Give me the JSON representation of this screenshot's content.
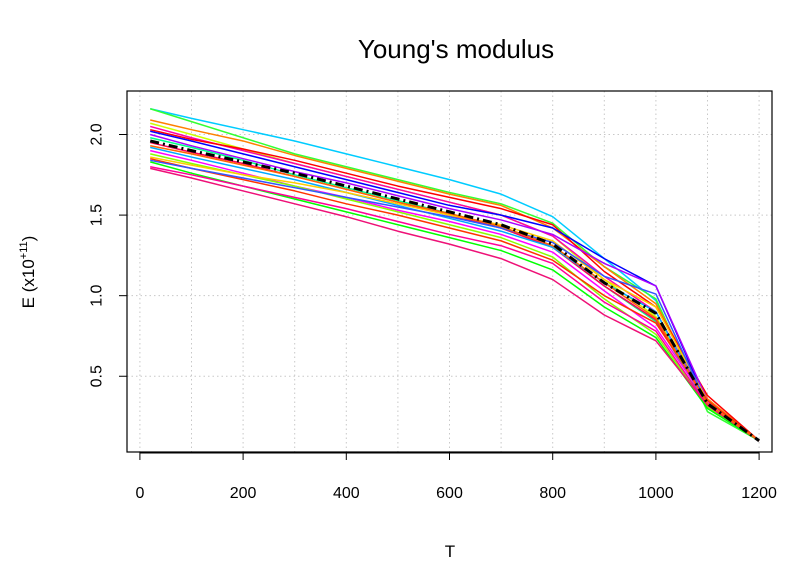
{
  "chart_data": {
    "type": "line",
    "title": "Young's modulus",
    "xlabel": "T",
    "ylabel_main": "E (x10",
    "ylabel_sup": "+11",
    "ylabel_close": ")",
    "xlim": [
      -25,
      1225
    ],
    "ylim": [
      0.03,
      2.27
    ],
    "x_ticks": [
      0,
      200,
      400,
      600,
      800,
      1000,
      1200
    ],
    "x_tick_labels": [
      "0",
      "200",
      "400",
      "600",
      "800",
      "1000",
      "1200"
    ],
    "y_ticks": [
      0.5,
      1.0,
      1.5,
      2.0
    ],
    "y_tick_labels": [
      "0.5",
      "1.0",
      "1.5",
      "2.0"
    ],
    "grid": true,
    "grid_x": [
      0,
      100,
      200,
      300,
      400,
      500,
      600,
      700,
      800,
      900,
      1000,
      1100,
      1200
    ],
    "x": [
      20,
      100,
      200,
      300,
      400,
      500,
      600,
      700,
      800,
      900,
      1000,
      1100,
      1200
    ],
    "series": [
      {
        "color": "#00ccff",
        "values": [
          2.16,
          2.1,
          2.03,
          1.96,
          1.88,
          1.8,
          1.72,
          1.63,
          1.49,
          1.23,
          0.97,
          0.31,
          0.1
        ]
      },
      {
        "color": "#33ff33",
        "values": [
          2.16,
          2.08,
          1.98,
          1.88,
          1.8,
          1.72,
          1.64,
          1.57,
          1.45,
          1.18,
          0.98,
          0.28,
          0.1
        ]
      },
      {
        "color": "#ff8000",
        "values": [
          2.09,
          2.03,
          1.96,
          1.87,
          1.79,
          1.71,
          1.63,
          1.56,
          1.42,
          1.18,
          0.95,
          0.36,
          0.1
        ]
      },
      {
        "color": "#ccff00",
        "values": [
          2.07,
          2.0,
          1.91,
          1.82,
          1.74,
          1.66,
          1.58,
          1.5,
          1.37,
          1.1,
          0.87,
          0.33,
          0.1
        ]
      },
      {
        "color": "#ff00aa",
        "values": [
          2.05,
          1.98,
          1.9,
          1.82,
          1.74,
          1.66,
          1.58,
          1.5,
          1.37,
          1.12,
          0.9,
          0.33,
          0.1
        ]
      },
      {
        "color": "#ff0000",
        "values": [
          2.03,
          1.97,
          1.91,
          1.84,
          1.76,
          1.68,
          1.61,
          1.54,
          1.44,
          1.15,
          0.93,
          0.38,
          0.1
        ]
      },
      {
        "color": "#0000ff",
        "values": [
          2.02,
          1.96,
          1.88,
          1.8,
          1.72,
          1.64,
          1.56,
          1.5,
          1.42,
          1.23,
          1.06,
          0.33,
          0.1
        ]
      },
      {
        "color": "#aa00ff",
        "values": [
          2.0,
          1.93,
          1.85,
          1.77,
          1.7,
          1.62,
          1.54,
          1.47,
          1.38,
          1.2,
          1.06,
          0.35,
          0.1
        ]
      },
      {
        "color": "#00ff88",
        "values": [
          1.98,
          1.92,
          1.84,
          1.75,
          1.67,
          1.59,
          1.51,
          1.42,
          1.3,
          1.06,
          0.84,
          0.32,
          0.1
        ]
      },
      {
        "color": "#ff0055",
        "values": [
          1.95,
          1.89,
          1.82,
          1.74,
          1.66,
          1.58,
          1.5,
          1.42,
          1.3,
          1.06,
          0.85,
          0.34,
          0.1
        ]
      },
      {
        "color": "#00aaff",
        "values": [
          1.92,
          1.86,
          1.79,
          1.72,
          1.64,
          1.56,
          1.48,
          1.4,
          1.3,
          1.08,
          0.9,
          0.31,
          0.1
        ]
      },
      {
        "color": "#ff00ff",
        "values": [
          1.9,
          1.84,
          1.76,
          1.68,
          1.61,
          1.53,
          1.46,
          1.38,
          1.27,
          1.03,
          0.8,
          0.34,
          0.1
        ]
      },
      {
        "color": "#88ff00",
        "values": [
          1.88,
          1.82,
          1.75,
          1.68,
          1.6,
          1.52,
          1.44,
          1.36,
          1.24,
          0.98,
          0.76,
          0.31,
          0.1
        ]
      },
      {
        "color": "#ffcc00",
        "values": [
          1.86,
          1.81,
          1.75,
          1.7,
          1.64,
          1.57,
          1.5,
          1.44,
          1.34,
          1.1,
          0.93,
          0.35,
          0.1
        ]
      },
      {
        "color": "#ff3300",
        "values": [
          1.85,
          1.79,
          1.72,
          1.65,
          1.57,
          1.5,
          1.42,
          1.34,
          1.22,
          1.0,
          0.83,
          0.35,
          0.1
        ]
      },
      {
        "color": "#3355ff",
        "values": [
          1.84,
          1.79,
          1.73,
          1.67,
          1.61,
          1.55,
          1.49,
          1.42,
          1.33,
          1.12,
          1.01,
          0.32,
          0.1
        ]
      },
      {
        "color": "#00ff00",
        "values": [
          1.83,
          1.76,
          1.68,
          1.6,
          1.52,
          1.44,
          1.36,
          1.28,
          1.16,
          0.93,
          0.74,
          0.3,
          0.1
        ]
      },
      {
        "color": "#ff0099",
        "values": [
          1.8,
          1.75,
          1.68,
          1.61,
          1.54,
          1.46,
          1.38,
          1.31,
          1.2,
          0.96,
          0.78,
          0.32,
          0.1
        ]
      },
      {
        "color": "#ee1177",
        "values": [
          1.79,
          1.73,
          1.65,
          1.57,
          1.49,
          1.4,
          1.32,
          1.23,
          1.1,
          0.88,
          0.72,
          0.32,
          0.1
        ]
      },
      {
        "color": "#ff6600",
        "values": [
          1.93,
          1.88,
          1.81,
          1.74,
          1.66,
          1.58,
          1.51,
          1.43,
          1.31,
          1.08,
          0.86,
          0.33,
          0.1
        ]
      }
    ],
    "mean_series": {
      "color": "#000000",
      "values": [
        1.96,
        1.9,
        1.83,
        1.76,
        1.68,
        1.6,
        1.52,
        1.44,
        1.32,
        1.08,
        0.89,
        0.33,
        0.1
      ]
    }
  }
}
